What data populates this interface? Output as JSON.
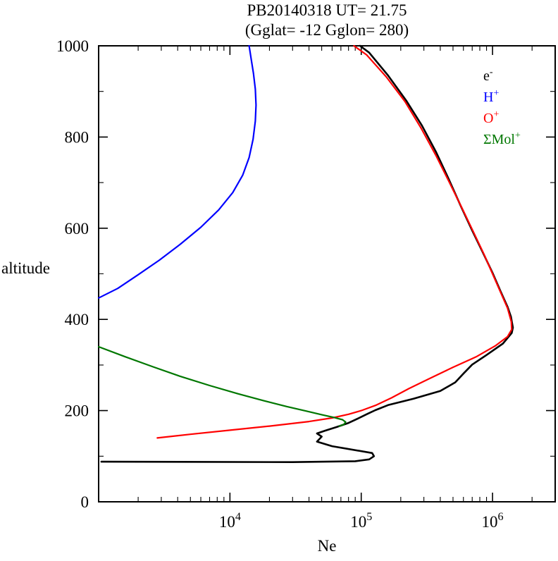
{
  "chart_data": {
    "type": "line",
    "title": "PB20140318   UT=  21.75",
    "subtitle": "(Gglat= -12   Gglon=  280)",
    "xlabel": "Ne",
    "ylabel": "altitude",
    "xscale": "log",
    "xlim": [
      1000,
      3000000
    ],
    "ylim": [
      0,
      1000
    ],
    "xticks": {
      "mantissa": "10",
      "labeled_exponents": [
        4,
        5,
        6
      ],
      "decade_exponents": [
        3,
        4,
        5,
        6
      ]
    },
    "yticks_major": [
      0,
      200,
      400,
      600,
      800,
      1000
    ],
    "yticks_minor_step": 100,
    "grid": false,
    "legend_position": "top-right-inside",
    "legend": [
      {
        "name": "electron",
        "main": "e",
        "sup": "-",
        "color": "#000000"
      },
      {
        "name": "hydrogen-ion",
        "main": "H",
        "sup": "+",
        "color": "#0000ff"
      },
      {
        "name": "oxygen-ion",
        "main": "O",
        "sup": "+",
        "color": "#ff0000"
      },
      {
        "name": "molecular-ions",
        "main": "ΣMol",
        "sup": "+",
        "color": "#007700"
      }
    ],
    "series": [
      {
        "name": "e-",
        "color": "#000000",
        "stroke_width": 2.6,
        "points": [
          [
            1050,
            88
          ],
          [
            30000,
            87
          ],
          [
            90000,
            89
          ],
          [
            115000,
            93
          ],
          [
            125000,
            100
          ],
          [
            121000,
            107
          ],
          [
            60000,
            122
          ],
          [
            46000,
            132
          ],
          [
            50000,
            143
          ],
          [
            46000,
            150
          ],
          [
            53000,
            156
          ],
          [
            65000,
            164
          ],
          [
            80000,
            173
          ],
          [
            95000,
            183
          ],
          [
            112000,
            193
          ],
          [
            128000,
            201
          ],
          [
            160000,
            212
          ],
          [
            250000,
            226
          ],
          [
            400000,
            243
          ],
          [
            520000,
            262
          ],
          [
            600000,
            281
          ],
          [
            700000,
            301
          ],
          [
            900000,
            322
          ],
          [
            1200000,
            347
          ],
          [
            1400000,
            370
          ],
          [
            1430000,
            382
          ],
          [
            1380000,
            406
          ],
          [
            1300000,
            428
          ],
          [
            1150000,
            462
          ],
          [
            1000000,
            502
          ],
          [
            850000,
            545
          ],
          [
            700000,
            595
          ],
          [
            570000,
            650
          ],
          [
            460000,
            710
          ],
          [
            370000,
            768
          ],
          [
            290000,
            825
          ],
          [
            220000,
            880
          ],
          [
            160000,
            935
          ],
          [
            115000,
            985
          ],
          [
            98000,
            1000
          ]
        ]
      },
      {
        "name": "H+",
        "color": "#0000ff",
        "stroke_width": 2.2,
        "points": [
          [
            1000,
            447
          ],
          [
            1400,
            468
          ],
          [
            2000,
            498
          ],
          [
            2900,
            530
          ],
          [
            4200,
            565
          ],
          [
            6000,
            602
          ],
          [
            8200,
            640
          ],
          [
            10500,
            678
          ],
          [
            12500,
            716
          ],
          [
            14000,
            755
          ],
          [
            15000,
            795
          ],
          [
            15600,
            835
          ],
          [
            15800,
            870
          ],
          [
            15600,
            905
          ],
          [
            15100,
            940
          ],
          [
            14500,
            972
          ],
          [
            14000,
            1000
          ]
        ]
      },
      {
        "name": "O+",
        "color": "#ff0000",
        "stroke_width": 2.2,
        "points": [
          [
            2800,
            140
          ],
          [
            5000,
            148
          ],
          [
            10000,
            157
          ],
          [
            20000,
            166
          ],
          [
            40000,
            176
          ],
          [
            60000,
            184
          ],
          [
            80000,
            192
          ],
          [
            100000,
            200
          ],
          [
            130000,
            212
          ],
          [
            170000,
            228
          ],
          [
            230000,
            248
          ],
          [
            330000,
            270
          ],
          [
            500000,
            295
          ],
          [
            750000,
            318
          ],
          [
            1050000,
            342
          ],
          [
            1300000,
            362
          ],
          [
            1400000,
            378
          ],
          [
            1390000,
            395
          ],
          [
            1300000,
            425
          ],
          [
            1150000,
            460
          ],
          [
            1000000,
            500
          ],
          [
            860000,
            543
          ],
          [
            720000,
            590
          ],
          [
            590000,
            642
          ],
          [
            470000,
            700
          ],
          [
            370000,
            760
          ],
          [
            285000,
            820
          ],
          [
            215000,
            878
          ],
          [
            155000,
            932
          ],
          [
            110000,
            980
          ],
          [
            88000,
            1000
          ]
        ]
      },
      {
        "name": "Mol+",
        "color": "#007700",
        "stroke_width": 2.2,
        "points": [
          [
            1000,
            340
          ],
          [
            1600,
            318
          ],
          [
            2600,
            296
          ],
          [
            4200,
            275
          ],
          [
            7000,
            255
          ],
          [
            11500,
            237
          ],
          [
            18000,
            222
          ],
          [
            27000,
            209
          ],
          [
            38000,
            199
          ],
          [
            50000,
            191
          ],
          [
            62000,
            185
          ],
          [
            72000,
            180
          ],
          [
            76000,
            175
          ],
          [
            74000,
            170
          ],
          [
            68000,
            166
          ]
        ]
      }
    ]
  }
}
